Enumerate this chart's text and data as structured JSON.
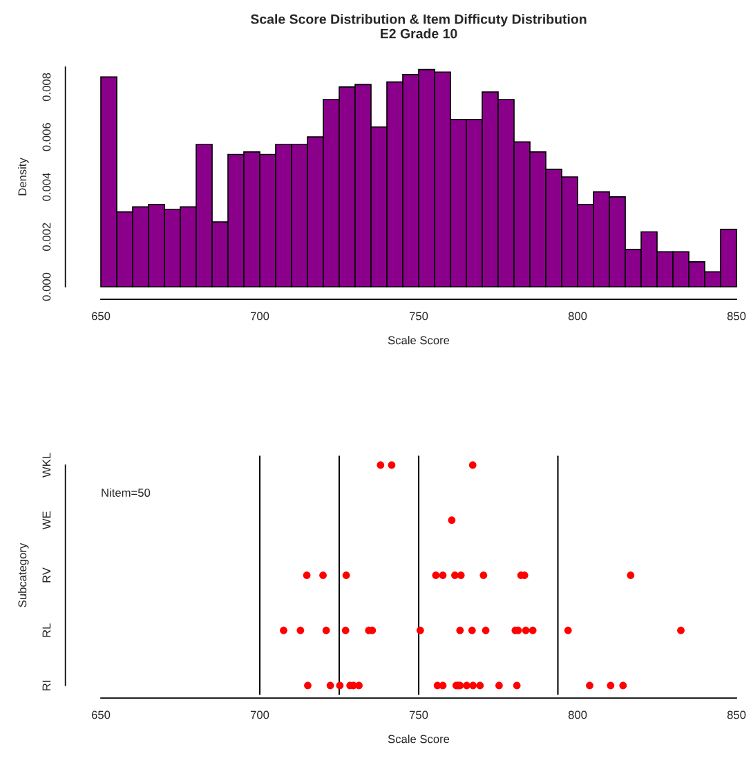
{
  "chart_data": [
    {
      "type": "histogram",
      "title": "Scale Score Distribution & Item Difficuty Distribution\nE2 Grade 10",
      "xlabel": "Scale Score",
      "ylabel": "Density",
      "color": "#8b008b",
      "bins": [
        650,
        655,
        660,
        665,
        670,
        675,
        680,
        685,
        690,
        695,
        700,
        705,
        710,
        715,
        720,
        725,
        730,
        735,
        740,
        745,
        750,
        755,
        760,
        765,
        770,
        775,
        780,
        785,
        790,
        795,
        800,
        805,
        810,
        815,
        820,
        825,
        830,
        835,
        840,
        845,
        850
      ],
      "values": [
        0.0084,
        0.003,
        0.0032,
        0.0033,
        0.0031,
        0.0032,
        0.0057,
        0.0026,
        0.0053,
        0.0054,
        0.0053,
        0.0057,
        0.0057,
        0.006,
        0.0075,
        0.008,
        0.0081,
        0.0064,
        0.0082,
        0.0085,
        0.0087,
        0.0086,
        0.0067,
        0.0067,
        0.0078,
        0.0075,
        0.0058,
        0.0054,
        0.0047,
        0.0044,
        0.0033,
        0.0038,
        0.0036,
        0.0015,
        0.0022,
        0.0014,
        0.0014,
        0.001,
        0.0006,
        0.0023
      ],
      "xlim": [
        650,
        850
      ],
      "ylim": [
        0,
        0.0088
      ],
      "xticks": [
        650,
        700,
        750,
        800,
        850
      ],
      "yticks": [
        {
          "value": 0,
          "label": "0.000"
        },
        0.002,
        0.004,
        0.006,
        0.008
      ],
      "grid": false,
      "legend": false
    },
    {
      "type": "scatter",
      "orientation": "horizontal",
      "xlabel": "Scale Score",
      "ylabel": "Subcategory",
      "categories": [
        "WKL",
        "WE",
        "RV",
        "RL",
        "RI"
      ],
      "xlim": [
        650,
        850
      ],
      "xticks": [
        650,
        700,
        750,
        800,
        850
      ],
      "grid": false,
      "marker": "circle",
      "annotations": [
        "Nitem=50"
      ],
      "ref_lines": [
        {
          "axis": "x",
          "value": 700,
          "color": "#000000"
        },
        {
          "axis": "x",
          "value": 725,
          "color": "#000000"
        },
        {
          "axis": "x",
          "value": 750,
          "color": "#000000"
        },
        {
          "axis": "x",
          "value": 793.8,
          "color": "#000000"
        }
      ],
      "legend": false,
      "series": [
        {
          "color": "#ff0000",
          "values": [
            738.0,
            760.4,
            714.8,
            707.5,
            715.1
          ]
        },
        {
          "color": "#ff0000",
          "values": [
            741.5,
            null,
            719.9,
            712.8,
            722.2
          ]
        },
        {
          "color": "#ff0000",
          "values": [
            767.0,
            null,
            727.2,
            720.9,
            725.2
          ]
        },
        {
          "color": "#ff0000",
          "values": [
            null,
            null,
            755.4,
            727.0,
            728.4
          ]
        },
        {
          "color": "#ff0000",
          "values": [
            null,
            null,
            757.6,
            734.3,
            729.5
          ]
        },
        {
          "color": "#ff0000",
          "values": [
            null,
            null,
            761.4,
            735.4,
            731.2
          ]
        },
        {
          "color": "#ff0000",
          "values": [
            null,
            null,
            763.3,
            750.5,
            755.9
          ]
        },
        {
          "color": "#ff0000",
          "values": [
            null,
            null,
            770.4,
            763.0,
            757.6
          ]
        },
        {
          "color": "#ff0000",
          "values": [
            null,
            null,
            782.2,
            766.8,
            761.8
          ]
        },
        {
          "color": "#ff0000",
          "values": [
            null,
            null,
            783.3,
            771.1,
            762.4
          ]
        },
        {
          "color": "#ff0000",
          "values": [
            null,
            null,
            816.7,
            780.4,
            763.0
          ]
        },
        {
          "color": "#ff0000",
          "values": [
            null,
            null,
            null,
            781.3,
            765.1
          ]
        },
        {
          "color": "#ff0000",
          "values": [
            null,
            null,
            null,
            783.7,
            767.1
          ]
        },
        {
          "color": "#ff0000",
          "values": [
            null,
            null,
            null,
            785.9,
            769.3
          ]
        },
        {
          "color": "#ff0000",
          "values": [
            null,
            null,
            null,
            797.0,
            775.3
          ]
        },
        {
          "color": "#ff0000",
          "values": [
            null,
            null,
            null,
            832.5,
            780.9
          ]
        },
        {
          "color": "#ff0000",
          "values": [
            null,
            null,
            null,
            null,
            803.8
          ]
        },
        {
          "color": "#ff0000",
          "values": [
            null,
            null,
            null,
            null,
            810.4
          ]
        },
        {
          "color": "#ff0000",
          "values": [
            null,
            null,
            null,
            null,
            814.3
          ]
        }
      ]
    }
  ]
}
